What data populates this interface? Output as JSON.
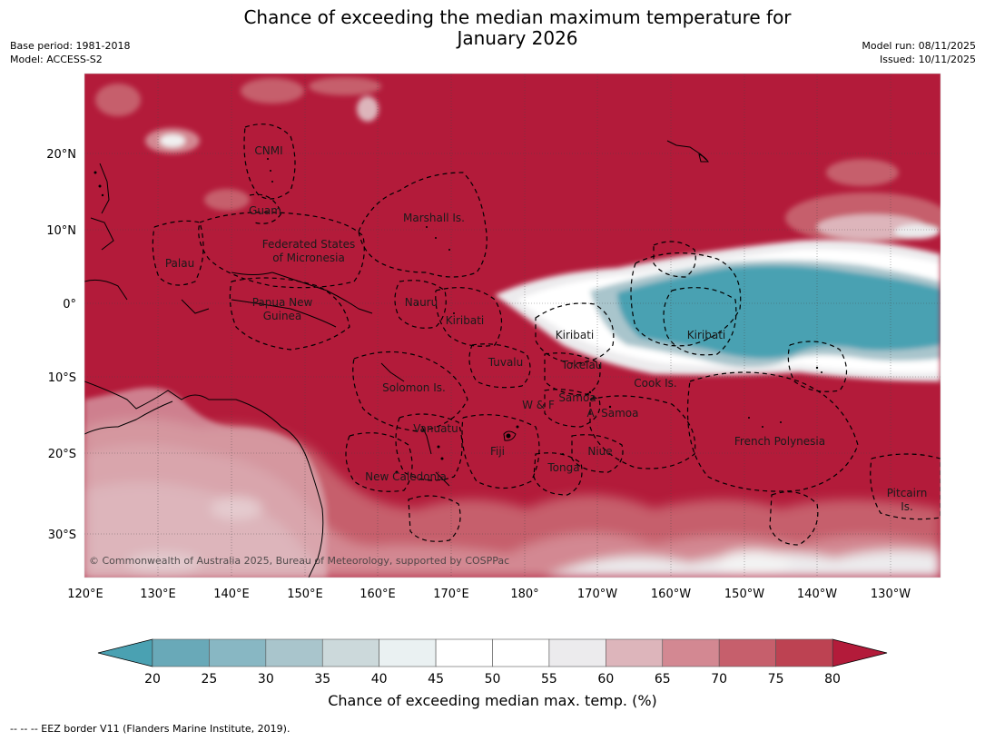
{
  "header": {
    "title_line1": "Chance of exceeding the median maximum temperature for",
    "title_line2": "January 2026",
    "base_period": "Base period: 1981-2018",
    "model": "Model: ACCESS-S2",
    "model_run": "Model run: 08/11/2025",
    "issued": "Issued: 10/11/2025"
  },
  "map": {
    "lon_labels": [
      "120°E",
      "130°E",
      "140°E",
      "150°E",
      "160°E",
      "170°E",
      "180°",
      "170°W",
      "160°W",
      "150°W",
      "140°W",
      "130°W"
    ],
    "lat_labels": [
      "20°N",
      "10°N",
      "0°",
      "10°S",
      "20°S",
      "30°S"
    ],
    "copyright": "© Commonwealth of Australia 2025, Bureau of Meteorology, supported by COSPPac",
    "regions": [
      {
        "name": "CNMI"
      },
      {
        "name": "Guam"
      },
      {
        "name": "Marshall Is."
      },
      {
        "name": "Federated States"
      },
      {
        "name": "of Micronesia"
      },
      {
        "name": "Palau"
      },
      {
        "name": "Papua New"
      },
      {
        "name": "Guinea"
      },
      {
        "name": "Nauru"
      },
      {
        "name": "Kiribati"
      },
      {
        "name": "Kiribati"
      },
      {
        "name": "Kiribati"
      },
      {
        "name": "Tuvalu"
      },
      {
        "name": "Tokelau"
      },
      {
        "name": "Solomon Is."
      },
      {
        "name": "Samoa"
      },
      {
        "name": "W & F"
      },
      {
        "name": "A. Samoa"
      },
      {
        "name": "Cook Is."
      },
      {
        "name": "Vanuatu"
      },
      {
        "name": "Fiji"
      },
      {
        "name": "Niue"
      },
      {
        "name": "Tonga"
      },
      {
        "name": "French Polynesia"
      },
      {
        "name": "New Caledonia"
      },
      {
        "name": "Pitcairn"
      },
      {
        "name": "Is."
      }
    ],
    "colors": {
      "dominant": "#b31b3a",
      "cool": "#4aa1b2",
      "border": "#000000"
    }
  },
  "colorbar": {
    "ticks": [
      "20",
      "25",
      "30",
      "35",
      "40",
      "45",
      "50",
      "55",
      "60",
      "65",
      "70",
      "75",
      "80"
    ],
    "colors": [
      "#69a9b8",
      "#88b7c3",
      "#a9c5cc",
      "#ccd9db",
      "#eaf1f2",
      "#ffffff",
      "#ffffff",
      "#ecebed",
      "#ddb5bb",
      "#d38892",
      "#c65f6c",
      "#bd4252"
    ],
    "under_color": "#4aa1b2",
    "over_color": "#b31b3a",
    "label": "Chance of exceeding median max. temp. (%)"
  },
  "footer": {
    "eez_note": "--  --  -- EEZ border V11 (Flanders Marine Institute, 2019)."
  }
}
